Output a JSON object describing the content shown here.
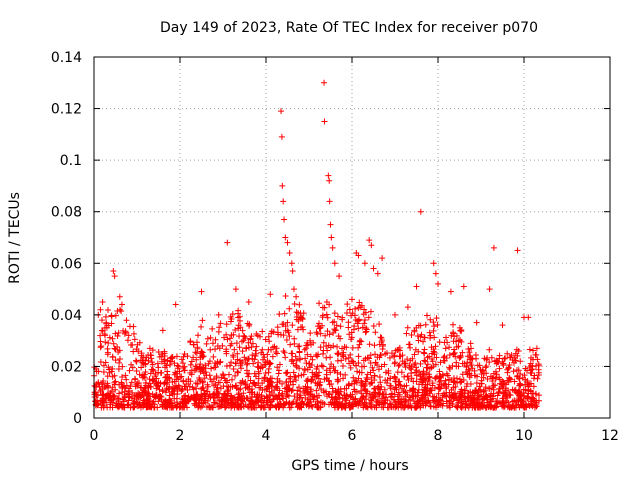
{
  "chart_data": {
    "type": "scatter",
    "title": "Day 149 of 2023, Rate Of TEC Index for receiver p070",
    "xlabel": "GPS time / hours",
    "ylabel": "ROTI / TECUs",
    "xlim": [
      0,
      12
    ],
    "ylim": [
      0,
      0.14
    ],
    "xticks": [
      0,
      2,
      4,
      6,
      8,
      10,
      12
    ],
    "yticks": [
      0,
      0.02,
      0.04,
      0.06,
      0.08,
      0.1,
      0.12,
      0.14
    ],
    "xtick_labels": [
      "0",
      "2",
      "4",
      "6",
      "8",
      "10",
      "12"
    ],
    "ytick_labels": [
      "0",
      "0.02",
      "0.04",
      "0.06",
      "0.08",
      "0.1",
      "0.12",
      "0.14"
    ],
    "grid": true,
    "marker": "+",
    "color": "#ff0000",
    "bulk_points_note": "dense cloud of ROTI samples between 0.003 and ~0.04 TECU/s from 0 to 10.35 h",
    "points": [
      {
        "x": 0.05,
        "y": 0.012
      },
      {
        "x": 0.1,
        "y": 0.04
      },
      {
        "x": 0.15,
        "y": 0.042
      },
      {
        "x": 0.2,
        "y": 0.045
      },
      {
        "x": 0.3,
        "y": 0.035
      },
      {
        "x": 0.45,
        "y": 0.057
      },
      {
        "x": 0.48,
        "y": 0.055
      },
      {
        "x": 0.6,
        "y": 0.047
      },
      {
        "x": 0.65,
        "y": 0.044
      },
      {
        "x": 1.3,
        "y": 0.027
      },
      {
        "x": 1.6,
        "y": 0.034
      },
      {
        "x": 1.9,
        "y": 0.044
      },
      {
        "x": 2.5,
        "y": 0.049
      },
      {
        "x": 2.9,
        "y": 0.04
      },
      {
        "x": 3.1,
        "y": 0.068
      },
      {
        "x": 3.3,
        "y": 0.05
      },
      {
        "x": 3.6,
        "y": 0.045
      },
      {
        "x": 4.1,
        "y": 0.048
      },
      {
        "x": 4.35,
        "y": 0.119
      },
      {
        "x": 4.37,
        "y": 0.109
      },
      {
        "x": 4.38,
        "y": 0.09
      },
      {
        "x": 4.4,
        "y": 0.084
      },
      {
        "x": 4.42,
        "y": 0.077
      },
      {
        "x": 4.45,
        "y": 0.07
      },
      {
        "x": 4.5,
        "y": 0.068
      },
      {
        "x": 4.55,
        "y": 0.064
      },
      {
        "x": 4.6,
        "y": 0.06
      },
      {
        "x": 4.62,
        "y": 0.057
      },
      {
        "x": 4.65,
        "y": 0.05
      },
      {
        "x": 4.7,
        "y": 0.047
      },
      {
        "x": 5.35,
        "y": 0.13
      },
      {
        "x": 5.36,
        "y": 0.115
      },
      {
        "x": 5.45,
        "y": 0.094
      },
      {
        "x": 5.47,
        "y": 0.092
      },
      {
        "x": 5.48,
        "y": 0.084
      },
      {
        "x": 5.5,
        "y": 0.075
      },
      {
        "x": 5.52,
        "y": 0.07
      },
      {
        "x": 5.55,
        "y": 0.066
      },
      {
        "x": 5.6,
        "y": 0.06
      },
      {
        "x": 5.7,
        "y": 0.055
      },
      {
        "x": 6.0,
        "y": 0.046
      },
      {
        "x": 6.1,
        "y": 0.064
      },
      {
        "x": 6.15,
        "y": 0.063
      },
      {
        "x": 6.3,
        "y": 0.06
      },
      {
        "x": 6.4,
        "y": 0.069
      },
      {
        "x": 6.45,
        "y": 0.067
      },
      {
        "x": 6.5,
        "y": 0.058
      },
      {
        "x": 6.6,
        "y": 0.056
      },
      {
        "x": 6.7,
        "y": 0.062
      },
      {
        "x": 7.0,
        "y": 0.04
      },
      {
        "x": 7.3,
        "y": 0.043
      },
      {
        "x": 7.5,
        "y": 0.051
      },
      {
        "x": 7.6,
        "y": 0.08
      },
      {
        "x": 7.9,
        "y": 0.06
      },
      {
        "x": 7.95,
        "y": 0.056
      },
      {
        "x": 8.0,
        "y": 0.052
      },
      {
        "x": 8.3,
        "y": 0.049
      },
      {
        "x": 8.6,
        "y": 0.051
      },
      {
        "x": 8.9,
        "y": 0.037
      },
      {
        "x": 9.2,
        "y": 0.05
      },
      {
        "x": 9.3,
        "y": 0.066
      },
      {
        "x": 9.5,
        "y": 0.036
      },
      {
        "x": 9.85,
        "y": 0.065
      },
      {
        "x": 10.0,
        "y": 0.039
      },
      {
        "x": 10.1,
        "y": 0.039
      },
      {
        "x": 10.3,
        "y": 0.027
      }
    ]
  }
}
